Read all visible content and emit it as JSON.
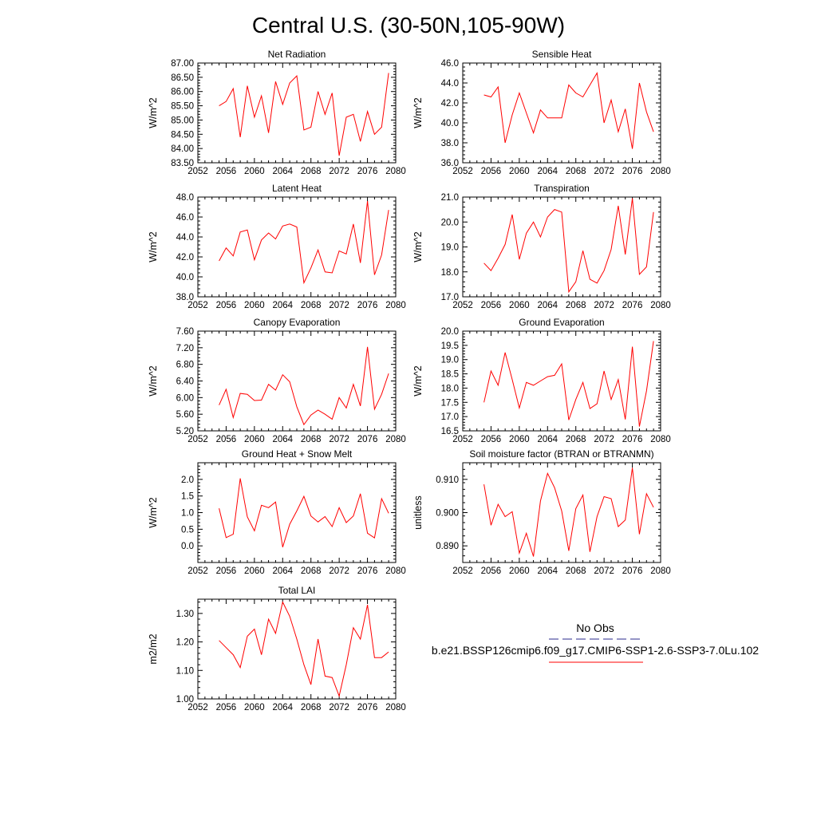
{
  "figure": {
    "title": "Central U.S. (30-50N,105-90W)",
    "series_color": "#ff0000",
    "obs_color": "#2b2b8c"
  },
  "legend": {
    "obs_label": "No Obs",
    "model_label": "b.e21.BSSP126cmip6.f09_g17.CMIP6-SSP1-2.6-SSP3-7.0Lu.102"
  },
  "chart_data": [
    {
      "type": "line",
      "title": "Net Radiation",
      "ylabel": "W/m^2",
      "xlim": [
        2052,
        2080
      ],
      "xticks": [
        "2052",
        "2056",
        "2060",
        "2064",
        "2068",
        "2072",
        "2076",
        "2080"
      ],
      "ylim": [
        83.5,
        87.0
      ],
      "yticks": [
        "83.50",
        "84.00",
        "84.50",
        "85.00",
        "85.50",
        "86.00",
        "86.50",
        "87.00"
      ],
      "series": [
        {
          "x": [
            2055,
            2056,
            2057,
            2058,
            2059,
            2060,
            2061,
            2062,
            2063,
            2064,
            2065,
            2066,
            2067,
            2068,
            2069,
            2070,
            2071,
            2072,
            2073,
            2074,
            2075,
            2076,
            2077,
            2078,
            2079
          ],
          "values": [
            85.5,
            85.65,
            86.1,
            84.4,
            86.2,
            85.1,
            85.85,
            84.55,
            86.35,
            85.55,
            86.3,
            86.55,
            84.65,
            84.75,
            86.0,
            85.2,
            85.95,
            83.75,
            85.1,
            85.2,
            84.25,
            85.3,
            84.5,
            84.75,
            86.65
          ]
        }
      ]
    },
    {
      "type": "line",
      "title": "Sensible Heat",
      "ylabel": "W/m^2",
      "xlim": [
        2052,
        2080
      ],
      "xticks": [
        "2052",
        "2056",
        "2060",
        "2064",
        "2068",
        "2072",
        "2076",
        "2080"
      ],
      "ylim": [
        36.0,
        46.0
      ],
      "yticks": [
        "36.0",
        "38.0",
        "40.0",
        "42.0",
        "44.0",
        "46.0"
      ],
      "series": [
        {
          "x": [
            2055,
            2056,
            2057,
            2058,
            2059,
            2060,
            2061,
            2062,
            2063,
            2064,
            2065,
            2066,
            2067,
            2068,
            2069,
            2070,
            2071,
            2072,
            2073,
            2074,
            2075,
            2076,
            2077,
            2078,
            2079
          ],
          "values": [
            42.8,
            42.6,
            43.6,
            38.0,
            40.8,
            43.0,
            41.0,
            39.0,
            41.3,
            40.5,
            40.5,
            40.5,
            43.8,
            43.0,
            42.6,
            43.8,
            45.0,
            40.0,
            42.3,
            39.1,
            41.4,
            37.4,
            44.0,
            41.1,
            39.1
          ]
        }
      ]
    },
    {
      "type": "line",
      "title": "Latent Heat",
      "ylabel": "W/m^2",
      "xlim": [
        2052,
        2080
      ],
      "xticks": [
        "2052",
        "2056",
        "2060",
        "2064",
        "2068",
        "2072",
        "2076",
        "2080"
      ],
      "ylim": [
        38.0,
        48.0
      ],
      "yticks": [
        "38.0",
        "40.0",
        "42.0",
        "44.0",
        "46.0",
        "48.0"
      ],
      "series": [
        {
          "x": [
            2055,
            2056,
            2057,
            2058,
            2059,
            2060,
            2061,
            2062,
            2063,
            2064,
            2065,
            2066,
            2067,
            2068,
            2069,
            2070,
            2071,
            2072,
            2073,
            2074,
            2075,
            2076,
            2077,
            2078,
            2079
          ],
          "values": [
            41.6,
            42.9,
            42.1,
            44.5,
            44.7,
            41.7,
            43.7,
            44.4,
            43.8,
            45.1,
            45.3,
            45.0,
            39.4,
            40.9,
            42.7,
            40.5,
            40.4,
            42.6,
            42.3,
            45.3,
            41.4,
            47.6,
            40.2,
            42.2,
            46.7
          ]
        }
      ]
    },
    {
      "type": "line",
      "title": "Transpiration",
      "ylabel": "W/m^2",
      "xlim": [
        2052,
        2080
      ],
      "xticks": [
        "2052",
        "2056",
        "2060",
        "2064",
        "2068",
        "2072",
        "2076",
        "2080"
      ],
      "ylim": [
        17.0,
        21.0
      ],
      "yticks": [
        "17.0",
        "18.0",
        "19.0",
        "20.0",
        "21.0"
      ],
      "series": [
        {
          "x": [
            2055,
            2056,
            2057,
            2058,
            2059,
            2060,
            2061,
            2062,
            2063,
            2064,
            2065,
            2066,
            2067,
            2068,
            2069,
            2070,
            2071,
            2072,
            2073,
            2074,
            2075,
            2076,
            2077,
            2078,
            2079
          ],
          "values": [
            18.35,
            18.05,
            18.55,
            19.1,
            20.3,
            18.5,
            19.55,
            20.0,
            19.4,
            20.2,
            20.5,
            20.4,
            17.2,
            17.6,
            18.85,
            17.7,
            17.55,
            18.05,
            18.9,
            20.65,
            18.7,
            20.95,
            17.9,
            18.2,
            20.4
          ]
        }
      ]
    },
    {
      "type": "line",
      "title": "Canopy Evaporation",
      "ylabel": "W/m^2",
      "xlim": [
        2052,
        2080
      ],
      "xticks": [
        "2052",
        "2056",
        "2060",
        "2064",
        "2068",
        "2072",
        "2076",
        "2080"
      ],
      "ylim": [
        5.2,
        7.6
      ],
      "yticks": [
        "5.20",
        "5.60",
        "6.00",
        "6.40",
        "6.80",
        "7.20",
        "7.60"
      ],
      "series": [
        {
          "x": [
            2055,
            2056,
            2057,
            2058,
            2059,
            2060,
            2061,
            2062,
            2063,
            2064,
            2065,
            2066,
            2067,
            2068,
            2069,
            2070,
            2071,
            2072,
            2073,
            2074,
            2075,
            2076,
            2077,
            2078,
            2079
          ],
          "values": [
            5.82,
            6.2,
            5.52,
            6.1,
            6.08,
            5.93,
            5.94,
            6.32,
            6.18,
            6.55,
            6.38,
            5.78,
            5.35,
            5.58,
            5.7,
            5.6,
            5.48,
            6.0,
            5.75,
            6.32,
            5.8,
            7.22,
            5.72,
            6.08,
            6.58
          ]
        }
      ]
    },
    {
      "type": "line",
      "title": "Ground Evaporation",
      "ylabel": "W/m^2",
      "xlim": [
        2052,
        2080
      ],
      "xticks": [
        "2052",
        "2056",
        "2060",
        "2064",
        "2068",
        "2072",
        "2076",
        "2080"
      ],
      "ylim": [
        16.5,
        20.0
      ],
      "yticks": [
        "16.5",
        "17.0",
        "17.5",
        "18.0",
        "18.5",
        "19.0",
        "19.5",
        "20.0"
      ],
      "series": [
        {
          "x": [
            2055,
            2056,
            2057,
            2058,
            2059,
            2060,
            2061,
            2062,
            2063,
            2064,
            2065,
            2066,
            2067,
            2068,
            2069,
            2070,
            2071,
            2072,
            2073,
            2074,
            2075,
            2076,
            2077,
            2078,
            2079
          ],
          "values": [
            17.5,
            18.6,
            18.1,
            19.25,
            18.3,
            17.3,
            18.2,
            18.1,
            18.25,
            18.4,
            18.45,
            18.85,
            16.88,
            17.6,
            18.2,
            17.28,
            17.45,
            18.6,
            17.6,
            18.3,
            16.9,
            19.45,
            16.65,
            17.9,
            19.65
          ]
        }
      ]
    },
    {
      "type": "line",
      "title": "Ground Heat + Snow Melt",
      "ylabel": "W/m^2",
      "xlim": [
        2052,
        2080
      ],
      "xticks": [
        "2052",
        "2056",
        "2060",
        "2064",
        "2068",
        "2072",
        "2076",
        "2080"
      ],
      "ylim": [
        -0.5,
        2.5
      ],
      "yticks": [
        "0.0",
        "0.5",
        "1.0",
        "1.5",
        "2.0"
      ],
      "ytick_values": [
        0.0,
        0.5,
        1.0,
        1.5,
        2.0
      ],
      "series": [
        {
          "x": [
            2055,
            2056,
            2057,
            2058,
            2059,
            2060,
            2061,
            2062,
            2063,
            2064,
            2065,
            2066,
            2067,
            2068,
            2069,
            2070,
            2071,
            2072,
            2073,
            2074,
            2075,
            2076,
            2077,
            2078,
            2079
          ],
          "values": [
            1.13,
            0.25,
            0.35,
            2.03,
            0.87,
            0.45,
            1.22,
            1.15,
            1.32,
            -0.04,
            0.65,
            1.05,
            1.49,
            0.9,
            0.72,
            0.88,
            0.58,
            1.15,
            0.7,
            0.9,
            1.57,
            0.38,
            0.24,
            1.42,
            0.98
          ]
        }
      ]
    },
    {
      "type": "line",
      "title": "Soil moisture factor (BTRAN or BTRANMN)",
      "ylabel": "unitless",
      "xlim": [
        2052,
        2080
      ],
      "xticks": [
        "2052",
        "2056",
        "2060",
        "2064",
        "2068",
        "2072",
        "2076",
        "2080"
      ],
      "ylim": [
        0.885,
        0.915
      ],
      "yticks": [
        "0.890",
        "0.900",
        "0.910"
      ],
      "ytick_values": [
        0.89,
        0.9,
        0.91
      ],
      "series": [
        {
          "x": [
            2055,
            2056,
            2057,
            2058,
            2059,
            2060,
            2061,
            2062,
            2063,
            2064,
            2065,
            2066,
            2067,
            2068,
            2069,
            2070,
            2071,
            2072,
            2073,
            2074,
            2075,
            2076,
            2077,
            2078,
            2079
          ],
          "values": [
            0.9085,
            0.8962,
            0.9025,
            0.8988,
            0.9003,
            0.8878,
            0.8938,
            0.8868,
            0.9035,
            0.9118,
            0.9075,
            0.9005,
            0.8885,
            0.9012,
            0.9053,
            0.8882,
            0.8988,
            0.9048,
            0.9042,
            0.8958,
            0.8978,
            0.9135,
            0.8935,
            0.9057,
            0.9016
          ]
        }
      ]
    },
    {
      "type": "line",
      "title": "Total LAI",
      "ylabel": "m2/m2",
      "xlim": [
        2052,
        2080
      ],
      "xticks": [
        "2052",
        "2056",
        "2060",
        "2064",
        "2068",
        "2072",
        "2076",
        "2080"
      ],
      "ylim": [
        1.0,
        1.35
      ],
      "yticks": [
        "1.00",
        "1.10",
        "1.20",
        "1.30"
      ],
      "ytick_values": [
        1.0,
        1.1,
        1.2,
        1.3
      ],
      "series": [
        {
          "x": [
            2055,
            2056,
            2057,
            2058,
            2059,
            2060,
            2061,
            2062,
            2063,
            2064,
            2065,
            2066,
            2067,
            2068,
            2069,
            2070,
            2071,
            2072,
            2073,
            2074,
            2075,
            2076,
            2077,
            2078,
            2079
          ],
          "values": [
            1.205,
            1.18,
            1.155,
            1.11,
            1.22,
            1.245,
            1.155,
            1.28,
            1.23,
            1.34,
            1.29,
            1.21,
            1.12,
            1.05,
            1.21,
            1.08,
            1.075,
            1.01,
            1.12,
            1.25,
            1.21,
            1.33,
            1.145,
            1.145,
            1.165
          ]
        }
      ]
    }
  ]
}
